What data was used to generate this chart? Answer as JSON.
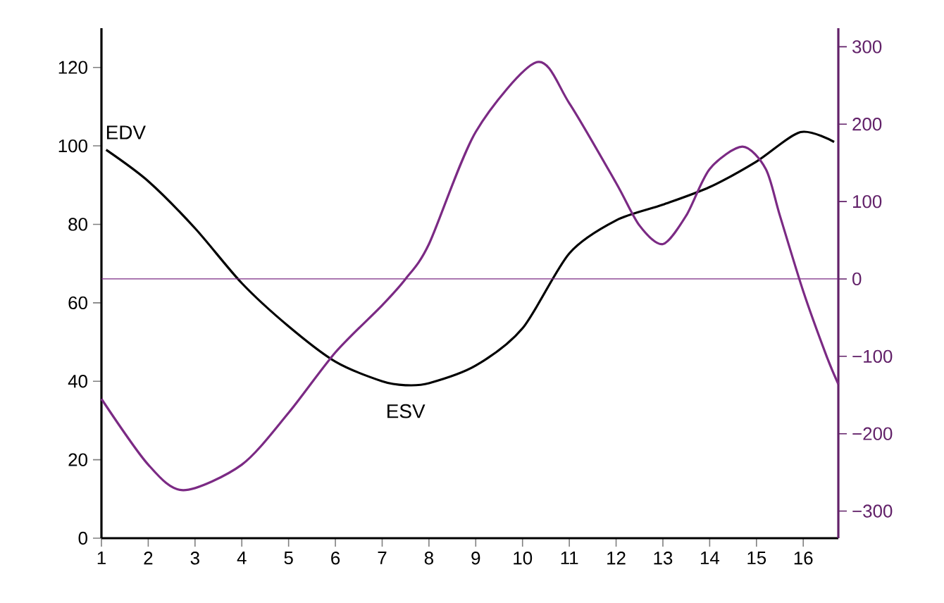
{
  "chart_data": {
    "type": "line",
    "xlim": [
      1,
      16.75
    ],
    "xticks": [
      1,
      2,
      3,
      4,
      5,
      6,
      7,
      8,
      9,
      10,
      11,
      12,
      13,
      14,
      15,
      16
    ],
    "ylim": [
      0,
      130
    ],
    "yticks": [
      0,
      20,
      40,
      60,
      80,
      100,
      120
    ],
    "y2lim": [
      -335,
      324
    ],
    "y2ticks": [
      {
        "value": -300,
        "label": "−300"
      },
      {
        "value": -200,
        "label": "−200"
      },
      {
        "value": -100,
        "label": "−100"
      },
      0,
      100,
      200,
      300
    ],
    "series": [
      {
        "color": "#000000",
        "x": [
          1.1,
          2,
          3,
          4,
          5,
          6,
          7,
          7.5,
          8,
          9,
          10,
          11,
          12,
          13,
          14,
          15,
          15.94,
          16.66
        ],
        "values": [
          99,
          91,
          79,
          65,
          54,
          45,
          40,
          39,
          39.5,
          44,
          53.5,
          72.6,
          81,
          85,
          89.5,
          96,
          103.5,
          101
        ]
      },
      {
        "color": "#7b2a84",
        "axis": "y2",
        "x": [
          1,
          2,
          2.75,
          4,
          5,
          6,
          7,
          7.5,
          8,
          9,
          10.3,
          11,
          12,
          12.5,
          13,
          13.5,
          14,
          14.7,
          15.2,
          15.5,
          16,
          16.5,
          16.75
        ],
        "values": [
          -155,
          -240,
          -273,
          -240,
          -173,
          -95,
          -34,
          0,
          45,
          190,
          280,
          227,
          124,
          69,
          45,
          82,
          142,
          171,
          142,
          82,
          -16,
          -100,
          -136
        ]
      }
    ],
    "ref_lines": [
      {
        "axis": "y2",
        "value": 0,
        "color": "#7b2a84"
      }
    ],
    "annotations": [
      {
        "text": "EDV",
        "x": 1.1,
        "y": 99
      },
      {
        "text": "ESV",
        "x": 7.5,
        "y": 39
      }
    ],
    "grid": false,
    "marker": "none",
    "line_style": "solid"
  }
}
